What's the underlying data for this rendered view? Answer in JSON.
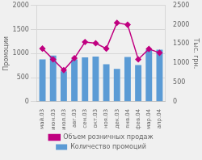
{
  "chart_data": {
    "type": "bar",
    "categories": [
      "май.03",
      "июн.03",
      "июл.03",
      "авг.03",
      "сен.03",
      "окт.03",
      "ноя.03",
      "дек.03",
      "янв.04",
      "фев.04",
      "мар.04",
      "апр.04"
    ],
    "series": [
      {
        "name": "Количество промоций",
        "type": "bar",
        "color": "#5b9bd5",
        "values": [
          880,
          960,
          630,
          880,
          920,
          940,
          780,
          680,
          930,
          760,
          1080,
          1080
        ]
      },
      {
        "name": "Объем розничных продаж",
        "type": "line",
        "color": "#c00080",
        "marker": "diamond",
        "axis": "y2",
        "values": [
          1380,
          1100,
          820,
          1130,
          1550,
          1520,
          1380,
          2050,
          2000,
          1100,
          1370,
          1270
        ]
      }
    ],
    "ylabel": "Промоции",
    "y2label": "Тыс. грн.",
    "ylim": [
      0,
      2000
    ],
    "yticks": [
      0,
      500,
      1000,
      1500,
      2000
    ],
    "y2lim": [
      0,
      2500
    ],
    "y2ticks": [
      0,
      500,
      1000,
      1500,
      2000,
      2500
    ],
    "grid": true,
    "legend": "bottom"
  }
}
